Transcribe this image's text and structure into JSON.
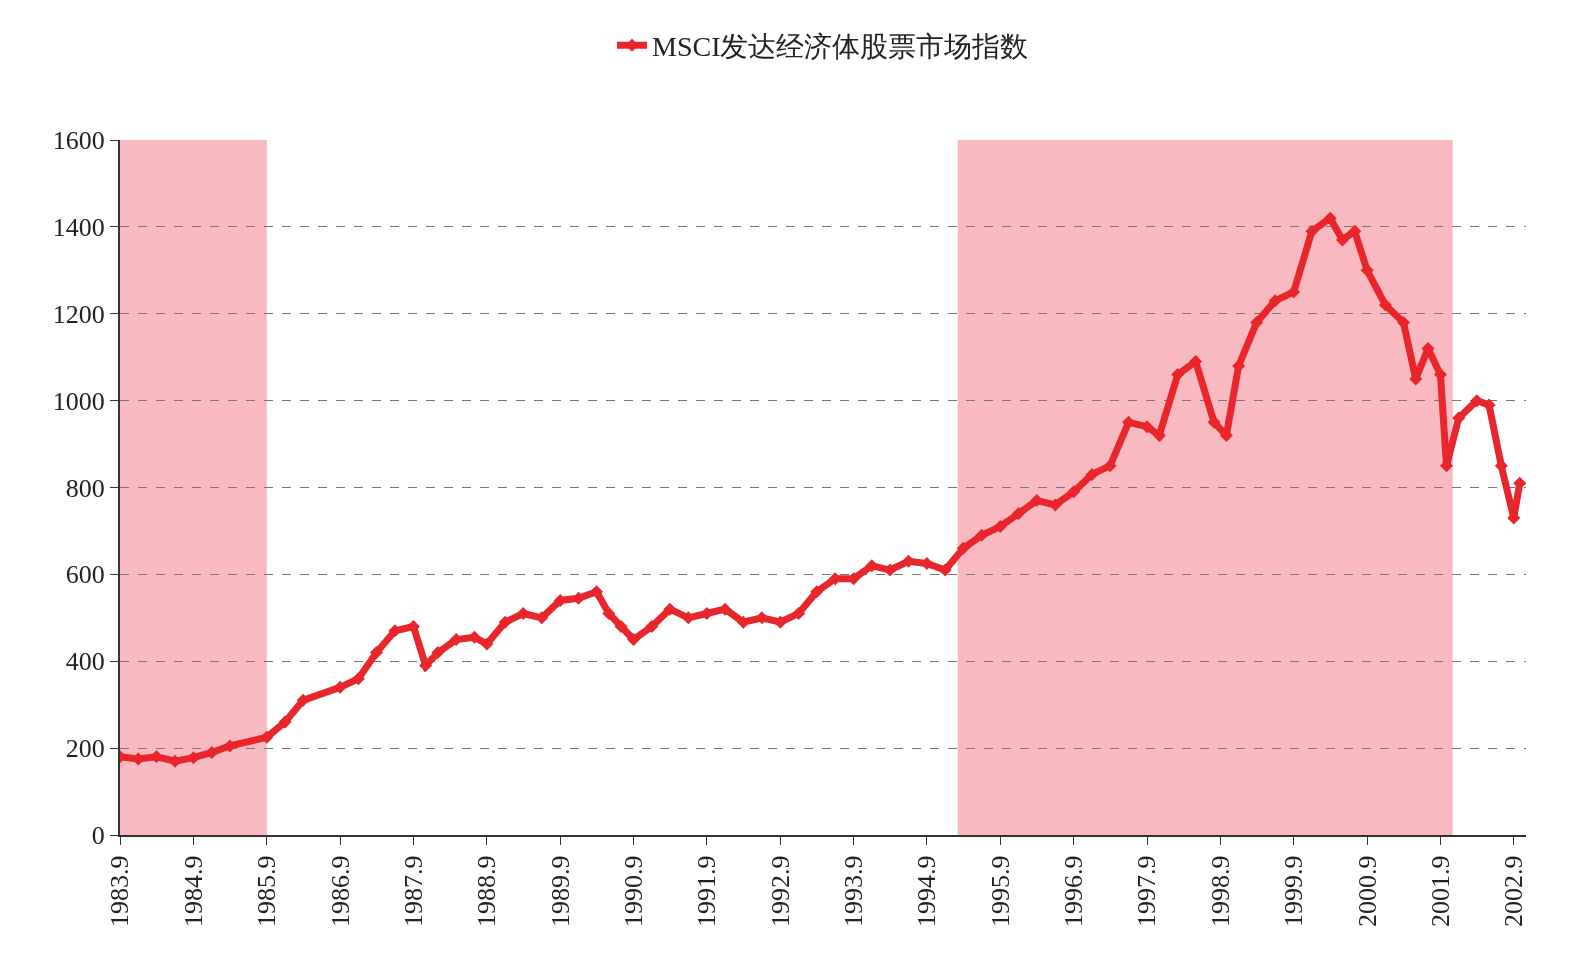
{
  "chart_data": {
    "type": "line",
    "marker": "diamond",
    "line_style": "solid",
    "grid": "y",
    "legend": "top",
    "x": [
      "1983-09",
      "1983-12",
      "1984-03",
      "1984-06",
      "1984-09",
      "1984-12",
      "1985-03",
      "1985-09",
      "1985-12",
      "1986-03",
      "1986-09",
      "1986-12",
      "1987-03",
      "1987-06",
      "1987-09",
      "1987-11",
      "1988-01",
      "1988-04",
      "1988-07",
      "1988-09",
      "1988-12",
      "1989-03",
      "1989-06",
      "1989-09",
      "1989-12",
      "1990-03",
      "1990-05",
      "1990-07",
      "1990-09",
      "1990-12",
      "1991-03",
      "1991-06",
      "1991-09",
      "1991-12",
      "1992-03",
      "1992-06",
      "1992-09",
      "1992-12",
      "1993-03",
      "1993-06",
      "1993-09",
      "1993-12",
      "1994-03",
      "1994-06",
      "1994-09",
      "1994-12",
      "1995-03",
      "1995-06",
      "1995-09",
      "1995-12",
      "1996-03",
      "1996-06",
      "1996-09",
      "1996-12",
      "1997-03",
      "1997-06",
      "1997-09",
      "1997-11",
      "1998-02",
      "1998-05",
      "1998-08",
      "1998-10",
      "1998-12",
      "1999-03",
      "1999-06",
      "1999-09",
      "1999-12",
      "2000-03",
      "2000-05",
      "2000-07",
      "2000-09",
      "2000-12",
      "2001-03",
      "2001-05",
      "2001-07",
      "2001-09",
      "2001-10",
      "2001-12",
      "2002-03",
      "2002-05",
      "2002-07",
      "2002-09",
      "2002-10"
    ],
    "series": [
      {
        "name": "MSCI发达经济体股票市场指数",
        "color": "#e8262b",
        "values": [
          180,
          175,
          180,
          170,
          178,
          190,
          205,
          225,
          260,
          310,
          340,
          360,
          420,
          470,
          480,
          390,
          420,
          450,
          455,
          440,
          490,
          510,
          500,
          540,
          545,
          560,
          510,
          480,
          450,
          480,
          520,
          500,
          510,
          520,
          490,
          500,
          490,
          510,
          560,
          590,
          590,
          620,
          610,
          630,
          625,
          610,
          660,
          690,
          710,
          740,
          770,
          760,
          790,
          830,
          850,
          950,
          940,
          920,
          1060,
          1090,
          950,
          920,
          1080,
          1180,
          1230,
          1250,
          1390,
          1420,
          1370,
          1390,
          1300,
          1220,
          1180,
          1050,
          1120,
          1060,
          850,
          960,
          1000,
          990,
          850,
          730,
          810
        ]
      }
    ],
    "ylim": [
      0,
      1600
    ],
    "yticks": [
      0,
      200,
      400,
      600,
      800,
      1000,
      1200,
      1400,
      1600
    ],
    "xlim": [
      "1983-09",
      "2002-11"
    ],
    "xticks": [
      {
        "value": "1983-09",
        "label": "1983.9"
      },
      {
        "value": "1984-09",
        "label": "1984.9"
      },
      {
        "value": "1985-09",
        "label": "1985.9"
      },
      {
        "value": "1986-09",
        "label": "1986.9"
      },
      {
        "value": "1987-09",
        "label": "1987.9"
      },
      {
        "value": "1988-09",
        "label": "1988.9"
      },
      {
        "value": "1989-09",
        "label": "1989.9"
      },
      {
        "value": "1990-09",
        "label": "1990.9"
      },
      {
        "value": "1991-09",
        "label": "1991.9"
      },
      {
        "value": "1992-09",
        "label": "1992.9"
      },
      {
        "value": "1993-09",
        "label": "1993.9"
      },
      {
        "value": "1994-09",
        "label": "1994.9"
      },
      {
        "value": "1995-09",
        "label": "1995.9"
      },
      {
        "value": "1996-09",
        "label": "1996.9"
      },
      {
        "value": "1997-09",
        "label": "1997.9"
      },
      {
        "value": "1998-09",
        "label": "1998.9"
      },
      {
        "value": "1999-09",
        "label": "1999.9"
      },
      {
        "value": "2000-09",
        "label": "2000.9"
      },
      {
        "value": "2001-09",
        "label": "2001.9"
      },
      {
        "value": "2002-09",
        "label": "2002.9"
      }
    ],
    "bands": [
      {
        "axis": "x",
        "from": "1983-09",
        "to": "1985-09",
        "color": "#f5a3ab"
      },
      {
        "axis": "x",
        "from": "1995-02",
        "to": "2001-11",
        "color": "#f5a3ab"
      }
    ]
  }
}
